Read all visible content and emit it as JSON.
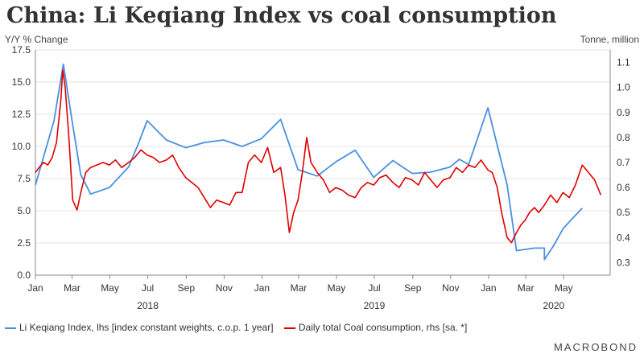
{
  "title": "China: Li Keqiang Index vs coal consumption",
  "left_unit": "Y/Y % Change",
  "right_unit": "Tonne, million",
  "brand": "MACROBOND",
  "colors": {
    "li_keqiang": "#4a90e2",
    "coal": "#e00000"
  },
  "chart_data": {
    "type": "line",
    "title": "China: Li Keqiang Index vs coal consumption",
    "x_ticks": [
      "Jan",
      "Mar",
      "May",
      "Jul",
      "Sep",
      "Nov",
      "Jan",
      "Mar",
      "May",
      "Jul",
      "Sep",
      "Nov",
      "Jan",
      "Mar",
      "May"
    ],
    "year_labels": [
      "2018",
      "2019",
      "2020"
    ],
    "x_range": [
      "2018-01-01",
      "2020-07-15"
    ],
    "y_left": {
      "label": "Y/Y % Change",
      "range": [
        0,
        17.5
      ],
      "ticks": [
        0.0,
        2.5,
        5.0,
        7.5,
        10.0,
        12.5,
        15.0,
        17.5
      ]
    },
    "y_right": {
      "label": "Tonne, million",
      "range": [
        0.25,
        1.15
      ],
      "ticks": [
        0.3,
        0.4,
        0.5,
        0.6,
        0.7,
        0.8,
        0.9,
        1.0,
        1.1
      ]
    },
    "grid": true,
    "legend_position": "bottom",
    "series": [
      {
        "name": "Li Keqiang Index, lhs [index constant weights, c.o.p. 1 year]",
        "axis": "left",
        "points": [
          [
            "2018-01-01",
            7.0
          ],
          [
            "2018-01-31",
            12.0
          ],
          [
            "2018-02-15",
            16.4
          ],
          [
            "2018-03-01",
            12.0
          ],
          [
            "2018-03-15",
            7.8
          ],
          [
            "2018-03-31",
            6.3
          ],
          [
            "2018-04-30",
            6.8
          ],
          [
            "2018-05-31",
            8.4
          ],
          [
            "2018-06-15",
            10.1
          ],
          [
            "2018-06-30",
            12.0
          ],
          [
            "2018-07-31",
            10.5
          ],
          [
            "2018-08-31",
            9.9
          ],
          [
            "2018-09-30",
            10.3
          ],
          [
            "2018-10-31",
            10.5
          ],
          [
            "2018-11-30",
            10.0
          ],
          [
            "2018-12-31",
            10.6
          ],
          [
            "2019-01-31",
            12.1
          ],
          [
            "2019-02-28",
            8.2
          ],
          [
            "2019-03-31",
            7.7
          ],
          [
            "2019-04-30",
            8.8
          ],
          [
            "2019-05-31",
            9.7
          ],
          [
            "2019-06-30",
            7.6
          ],
          [
            "2019-07-31",
            8.9
          ],
          [
            "2019-08-31",
            7.9
          ],
          [
            "2019-09-30",
            8.0
          ],
          [
            "2019-10-31",
            8.4
          ],
          [
            "2019-11-15",
            9.0
          ],
          [
            "2019-11-30",
            8.6
          ],
          [
            "2019-12-31",
            13.0
          ],
          [
            "2020-01-31",
            7.0
          ],
          [
            "2020-02-15",
            1.9
          ],
          [
            "2020-02-29",
            2.0
          ],
          [
            "2020-03-15",
            2.1
          ],
          [
            "2020-03-31",
            2.1
          ],
          [
            "2020-03-31",
            1.2
          ],
          [
            "2020-04-15",
            2.3
          ],
          [
            "2020-04-30",
            3.6
          ],
          [
            "2020-05-15",
            4.4
          ],
          [
            "2020-05-31",
            5.2
          ]
        ]
      },
      {
        "name": "Daily total Coal consumption, rhs [sa. *]",
        "axis": "right",
        "points": [
          [
            "2018-01-01",
            0.66
          ],
          [
            "2018-01-07",
            0.68
          ],
          [
            "2018-01-14",
            0.7
          ],
          [
            "2018-01-21",
            0.69
          ],
          [
            "2018-01-28",
            0.72
          ],
          [
            "2018-02-04",
            0.78
          ],
          [
            "2018-02-11",
            0.95
          ],
          [
            "2018-02-14",
            1.07
          ],
          [
            "2018-02-18",
            1.0
          ],
          [
            "2018-02-24",
            0.8
          ],
          [
            "2018-03-02",
            0.55
          ],
          [
            "2018-03-09",
            0.51
          ],
          [
            "2018-03-16",
            0.59
          ],
          [
            "2018-03-23",
            0.66
          ],
          [
            "2018-03-31",
            0.68
          ],
          [
            "2018-04-10",
            0.69
          ],
          [
            "2018-04-20",
            0.7
          ],
          [
            "2018-04-30",
            0.69
          ],
          [
            "2018-05-10",
            0.71
          ],
          [
            "2018-05-20",
            0.68
          ],
          [
            "2018-05-31",
            0.7
          ],
          [
            "2018-06-10",
            0.72
          ],
          [
            "2018-06-20",
            0.75
          ],
          [
            "2018-06-30",
            0.73
          ],
          [
            "2018-07-10",
            0.72
          ],
          [
            "2018-07-20",
            0.7
          ],
          [
            "2018-07-31",
            0.71
          ],
          [
            "2018-08-10",
            0.73
          ],
          [
            "2018-08-20",
            0.68
          ],
          [
            "2018-08-31",
            0.64
          ],
          [
            "2018-09-10",
            0.62
          ],
          [
            "2018-09-20",
            0.6
          ],
          [
            "2018-09-30",
            0.56
          ],
          [
            "2018-10-10",
            0.52
          ],
          [
            "2018-10-20",
            0.55
          ],
          [
            "2018-10-31",
            0.54
          ],
          [
            "2018-11-10",
            0.53
          ],
          [
            "2018-11-20",
            0.58
          ],
          [
            "2018-11-30",
            0.58
          ],
          [
            "2018-12-10",
            0.7
          ],
          [
            "2018-12-20",
            0.73
          ],
          [
            "2018-12-31",
            0.7
          ],
          [
            "2019-01-10",
            0.76
          ],
          [
            "2019-01-20",
            0.66
          ],
          [
            "2019-01-31",
            0.68
          ],
          [
            "2019-02-07",
            0.57
          ],
          [
            "2019-02-14",
            0.42
          ],
          [
            "2019-02-21",
            0.5
          ],
          [
            "2019-02-28",
            0.55
          ],
          [
            "2019-03-07",
            0.66
          ],
          [
            "2019-03-14",
            0.8
          ],
          [
            "2019-03-21",
            0.7
          ],
          [
            "2019-03-31",
            0.66
          ],
          [
            "2019-04-10",
            0.63
          ],
          [
            "2019-04-20",
            0.58
          ],
          [
            "2019-04-30",
            0.6
          ],
          [
            "2019-05-10",
            0.59
          ],
          [
            "2019-05-20",
            0.57
          ],
          [
            "2019-05-31",
            0.56
          ],
          [
            "2019-06-10",
            0.6
          ],
          [
            "2019-06-20",
            0.62
          ],
          [
            "2019-06-30",
            0.61
          ],
          [
            "2019-07-10",
            0.64
          ],
          [
            "2019-07-20",
            0.65
          ],
          [
            "2019-07-31",
            0.62
          ],
          [
            "2019-08-10",
            0.6
          ],
          [
            "2019-08-20",
            0.64
          ],
          [
            "2019-08-31",
            0.63
          ],
          [
            "2019-09-10",
            0.61
          ],
          [
            "2019-09-20",
            0.66
          ],
          [
            "2019-09-30",
            0.63
          ],
          [
            "2019-10-10",
            0.6
          ],
          [
            "2019-10-20",
            0.63
          ],
          [
            "2019-10-31",
            0.64
          ],
          [
            "2019-11-10",
            0.68
          ],
          [
            "2019-11-20",
            0.66
          ],
          [
            "2019-11-30",
            0.69
          ],
          [
            "2019-12-10",
            0.68
          ],
          [
            "2019-12-20",
            0.71
          ],
          [
            "2019-12-31",
            0.67
          ],
          [
            "2020-01-07",
            0.66
          ],
          [
            "2020-01-15",
            0.6
          ],
          [
            "2020-01-22",
            0.5
          ],
          [
            "2020-01-31",
            0.4
          ],
          [
            "2020-02-07",
            0.38
          ],
          [
            "2020-02-15",
            0.42
          ],
          [
            "2020-02-22",
            0.45
          ],
          [
            "2020-02-29",
            0.47
          ],
          [
            "2020-03-07",
            0.5
          ],
          [
            "2020-03-15",
            0.52
          ],
          [
            "2020-03-22",
            0.5
          ],
          [
            "2020-03-31",
            0.53
          ],
          [
            "2020-04-10",
            0.57
          ],
          [
            "2020-04-20",
            0.54
          ],
          [
            "2020-04-30",
            0.58
          ],
          [
            "2020-05-10",
            0.56
          ],
          [
            "2020-05-20",
            0.61
          ],
          [
            "2020-05-31",
            0.69
          ],
          [
            "2020-06-10",
            0.66
          ],
          [
            "2020-06-20",
            0.63
          ],
          [
            "2020-06-30",
            0.57
          ]
        ]
      }
    ]
  }
}
